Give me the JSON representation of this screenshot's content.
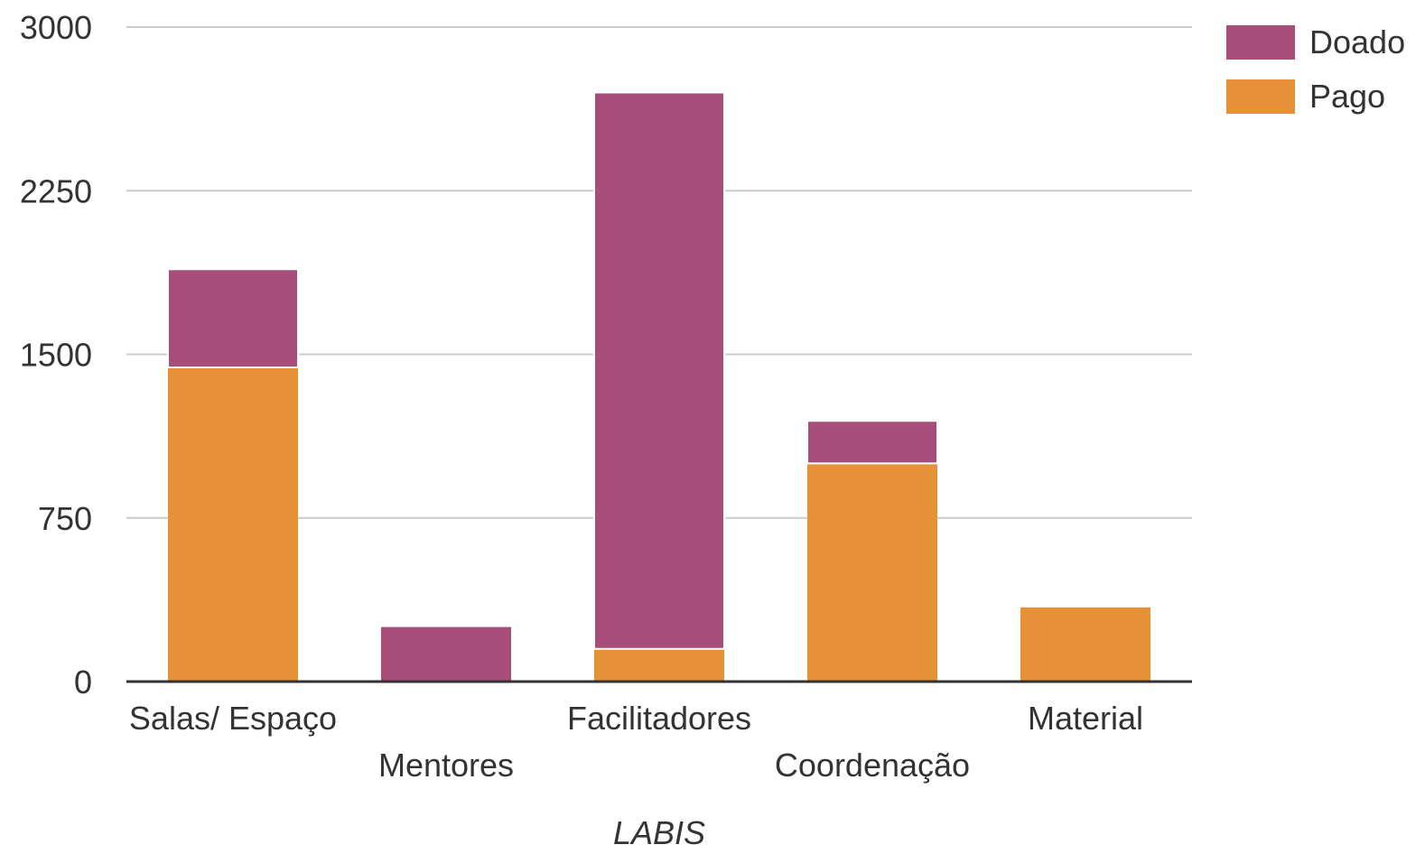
{
  "chart_data": {
    "type": "bar",
    "stacked": true,
    "categories": [
      "Salas/ Espaço",
      "Mentores",
      "Facilitadores",
      "Coordenação",
      "Material"
    ],
    "series": [
      {
        "name": "Pago",
        "color": "#e69138",
        "values": [
          1440,
          0,
          150,
          1000,
          340
        ]
      },
      {
        "name": "Doado",
        "color": "#a64d79",
        "values": [
          450,
          250,
          2550,
          195,
          0
        ]
      }
    ],
    "xlabel": "LABIS",
    "ylabel": "",
    "ylim": [
      0,
      3000
    ],
    "yticks": [
      "0",
      "750",
      "1500",
      "2250",
      "3000"
    ],
    "grid": true,
    "legend": {
      "position": "top-right",
      "entries": [
        {
          "name": "Doado",
          "color": "#a64d79"
        },
        {
          "name": "Pago",
          "color": "#e69138"
        }
      ]
    }
  }
}
